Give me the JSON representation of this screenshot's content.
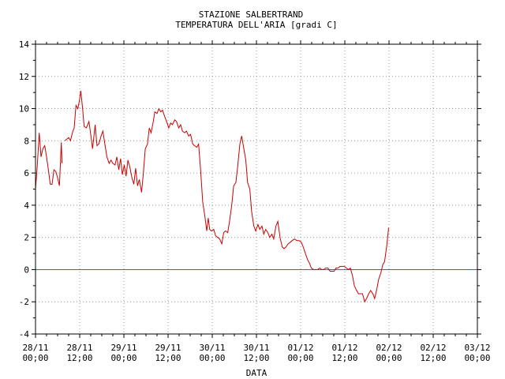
{
  "chart_data": {
    "type": "line",
    "title": "STAZIONE SALBERTRAND",
    "subtitle": "TEMPERATURA DELL'ARIA [gradi C]",
    "xlabel": "DATA",
    "ylabel": "",
    "ylim": [
      -4,
      14
    ],
    "xlim_hours": [
      0,
      120
    ],
    "grid": true,
    "x_tick_labels": [
      {
        "hours": 0,
        "line1": "28/11",
        "line2": "00;00"
      },
      {
        "hours": 12,
        "line1": "28/11",
        "line2": "12;00"
      },
      {
        "hours": 24,
        "line1": "29/11",
        "line2": "00;00"
      },
      {
        "hours": 36,
        "line1": "29/11",
        "line2": "12;00"
      },
      {
        "hours": 48,
        "line1": "30/11",
        "line2": "00;00"
      },
      {
        "hours": 60,
        "line1": "30/11",
        "line2": "12;00"
      },
      {
        "hours": 72,
        "line1": "01/12",
        "line2": "00;00"
      },
      {
        "hours": 84,
        "line1": "01/12",
        "line2": "12;00"
      },
      {
        "hours": 96,
        "line1": "02/12",
        "line2": "00;00"
      },
      {
        "hours": 108,
        "line1": "02/12",
        "line2": "12;00"
      },
      {
        "hours": 120,
        "line1": "03/12",
        "line2": "00;00"
      }
    ],
    "y_ticks": [
      -4,
      -2,
      0,
      2,
      4,
      6,
      8,
      10,
      12,
      14
    ],
    "reference_line": {
      "y": 0,
      "color": "#008b8b"
    },
    "series": [
      {
        "name": "",
        "color": "#cc0000",
        "segments": [
          [
            [
              0,
              5
            ],
            [
              0.5,
              6.5
            ],
            [
              1,
              8.5
            ],
            [
              1.5,
              7
            ],
            [
              2,
              7.5
            ],
            [
              2.5,
              7.7
            ],
            [
              3,
              7
            ],
            [
              3.5,
              6.2
            ],
            [
              4,
              5.3
            ],
            [
              4.5,
              5.3
            ],
            [
              5,
              6.2
            ],
            [
              5.5,
              6.1
            ],
            [
              6,
              5.7
            ],
            [
              6.5,
              5.2
            ],
            [
              7,
              7.9
            ],
            [
              7.2,
              6.6
            ]
          ],
          [
            [
              8,
              8
            ],
            [
              9,
              8.2
            ],
            [
              9.5,
              8
            ],
            [
              10,
              8.5
            ],
            [
              10.5,
              8.8
            ],
            [
              11,
              10.2
            ],
            [
              11.5,
              10
            ],
            [
              12,
              10.6
            ],
            [
              12.3,
              11.1
            ],
            [
              12.8,
              10
            ],
            [
              13.2,
              8.9
            ],
            [
              13.8,
              8.8
            ],
            [
              14.5,
              9.2
            ],
            [
              15,
              8.4
            ],
            [
              15.5,
              7.5
            ],
            [
              16.2,
              9
            ],
            [
              16.7,
              7.7
            ],
            [
              17.2,
              7.8
            ],
            [
              17.8,
              8.3
            ],
            [
              18.3,
              8.6
            ],
            [
              18.9,
              7.7
            ],
            [
              19.4,
              7
            ],
            [
              20,
              6.6
            ],
            [
              20.5,
              6.8
            ],
            [
              21,
              6.6
            ],
            [
              21.6,
              6.5
            ],
            [
              22.1,
              7
            ],
            [
              22.6,
              6.2
            ],
            [
              23.1,
              6.9
            ],
            [
              23.6,
              5.9
            ],
            [
              24.1,
              6.5
            ],
            [
              24.6,
              5.8
            ],
            [
              25.1,
              6.8
            ],
            [
              25.6,
              6.4
            ],
            [
              26.1,
              5.8
            ],
            [
              26.7,
              5.3
            ],
            [
              27.2,
              6.3
            ],
            [
              27.7,
              5.2
            ],
            [
              28.2,
              5.6
            ],
            [
              28.8,
              4.8
            ],
            [
              29.3,
              6
            ],
            [
              29.8,
              7.5
            ],
            [
              30.4,
              7.8
            ],
            [
              30.9,
              8.8
            ],
            [
              31.4,
              8.5
            ],
            [
              31.9,
              9.1
            ],
            [
              32.4,
              9.8
            ],
            [
              33,
              9.7
            ],
            [
              33.5,
              10
            ],
            [
              34,
              9.8
            ],
            [
              34.5,
              9.9
            ],
            [
              35.1,
              9.5
            ],
            [
              35.6,
              9.2
            ],
            [
              36.2,
              8.8
            ],
            [
              36.7,
              9.1
            ],
            [
              37.2,
              9
            ],
            [
              37.8,
              9.3
            ],
            [
              38.3,
              9.2
            ],
            [
              38.9,
              8.8
            ],
            [
              39.4,
              9
            ],
            [
              39.9,
              8.6
            ],
            [
              40.5,
              8.5
            ],
            [
              41,
              8.6
            ],
            [
              41.6,
              8.3
            ],
            [
              42.1,
              8.4
            ],
            [
              42.7,
              7.8
            ],
            [
              43.2,
              7.7
            ],
            [
              43.8,
              7.6
            ],
            [
              44.3,
              7.8
            ],
            [
              44.9,
              6
            ],
            [
              45.4,
              4.2
            ],
            [
              46,
              3.3
            ],
            [
              46.5,
              2.4
            ],
            [
              46.9,
              3.2
            ],
            [
              47.3,
              2.5
            ],
            [
              47.8,
              2.4
            ],
            [
              48.4,
              2.5
            ],
            [
              48.9,
              2.1
            ],
            [
              49.5,
              2
            ],
            [
              50,
              1.9
            ],
            [
              50.6,
              1.6
            ],
            [
              51.1,
              2.3
            ],
            [
              51.6,
              2.4
            ],
            [
              52.2,
              2.3
            ],
            [
              52.7,
              3
            ],
            [
              53.3,
              4
            ],
            [
              53.8,
              5.2
            ],
            [
              54.4,
              5.4
            ],
            [
              54.9,
              6.4
            ],
            [
              55.5,
              7.8
            ],
            [
              56,
              8.3
            ],
            [
              56.5,
              7.6
            ],
            [
              57.1,
              6.8
            ],
            [
              57.6,
              5.4
            ],
            [
              58.2,
              5
            ],
            [
              58.7,
              3.6
            ],
            [
              59.3,
              2.7
            ],
            [
              59.8,
              2.4
            ],
            [
              60.4,
              2.8
            ],
            [
              60.9,
              2.5
            ],
            [
              61.5,
              2.7
            ],
            [
              62,
              2.2
            ],
            [
              62.5,
              2.5
            ],
            [
              63.1,
              2.3
            ],
            [
              63.6,
              2
            ],
            [
              64.2,
              2.2
            ],
            [
              64.7,
              1.9
            ],
            [
              65.3,
              2.7
            ],
            [
              65.8,
              3
            ],
            [
              66.4,
              2
            ],
            [
              67,
              1.4
            ],
            [
              67.5,
              1.3
            ],
            [
              68,
              1.4
            ],
            [
              68.6,
              1.6
            ],
            [
              69.2,
              1.7
            ],
            [
              69.7,
              1.8
            ],
            [
              70.3,
              1.9
            ],
            [
              71,
              1.8
            ],
            [
              71.6,
              1.8
            ],
            [
              72.2,
              1.7
            ],
            [
              72.7,
              1.4
            ],
            [
              73.3,
              1
            ],
            [
              73.9,
              0.6
            ],
            [
              74.4,
              0.4
            ],
            [
              74.9,
              0.1
            ],
            [
              75.5,
              0
            ],
            [
              76,
              0
            ],
            [
              76.6,
              0
            ],
            [
              77.2,
              0.1
            ],
            [
              77.7,
              0
            ],
            [
              78.3,
              0
            ],
            [
              78.8,
              0.1
            ],
            [
              79.4,
              0.1
            ],
            [
              80,
              -0.1
            ],
            [
              80.5,
              -0.1
            ],
            [
              81.1,
              -0.1
            ],
            [
              81.6,
              0.1
            ],
            [
              82.2,
              0.1
            ],
            [
              82.7,
              0.2
            ],
            [
              83.3,
              0.2
            ],
            [
              83.9,
              0.2
            ],
            [
              84.4,
              0.1
            ],
            [
              85,
              0
            ],
            [
              85.5,
              0.1
            ],
            [
              86.1,
              -0.4
            ],
            [
              86.6,
              -1
            ],
            [
              87.2,
              -1.3
            ],
            [
              87.7,
              -1.5
            ],
            [
              88.3,
              -1.5
            ],
            [
              88.8,
              -1.5
            ],
            [
              89.4,
              -2
            ],
            [
              89.9,
              -1.8
            ],
            [
              90.5,
              -1.5
            ],
            [
              91,
              -1.3
            ],
            [
              91.6,
              -1.5
            ],
            [
              92.1,
              -1.8
            ],
            [
              92.7,
              -1.2
            ],
            [
              93.2,
              -0.6
            ],
            [
              93.8,
              -0.2
            ],
            [
              94.3,
              0.3
            ],
            [
              94.8,
              0.5
            ],
            [
              95.4,
              1.5
            ],
            [
              95.9,
              2.6
            ]
          ]
        ]
      }
    ]
  }
}
